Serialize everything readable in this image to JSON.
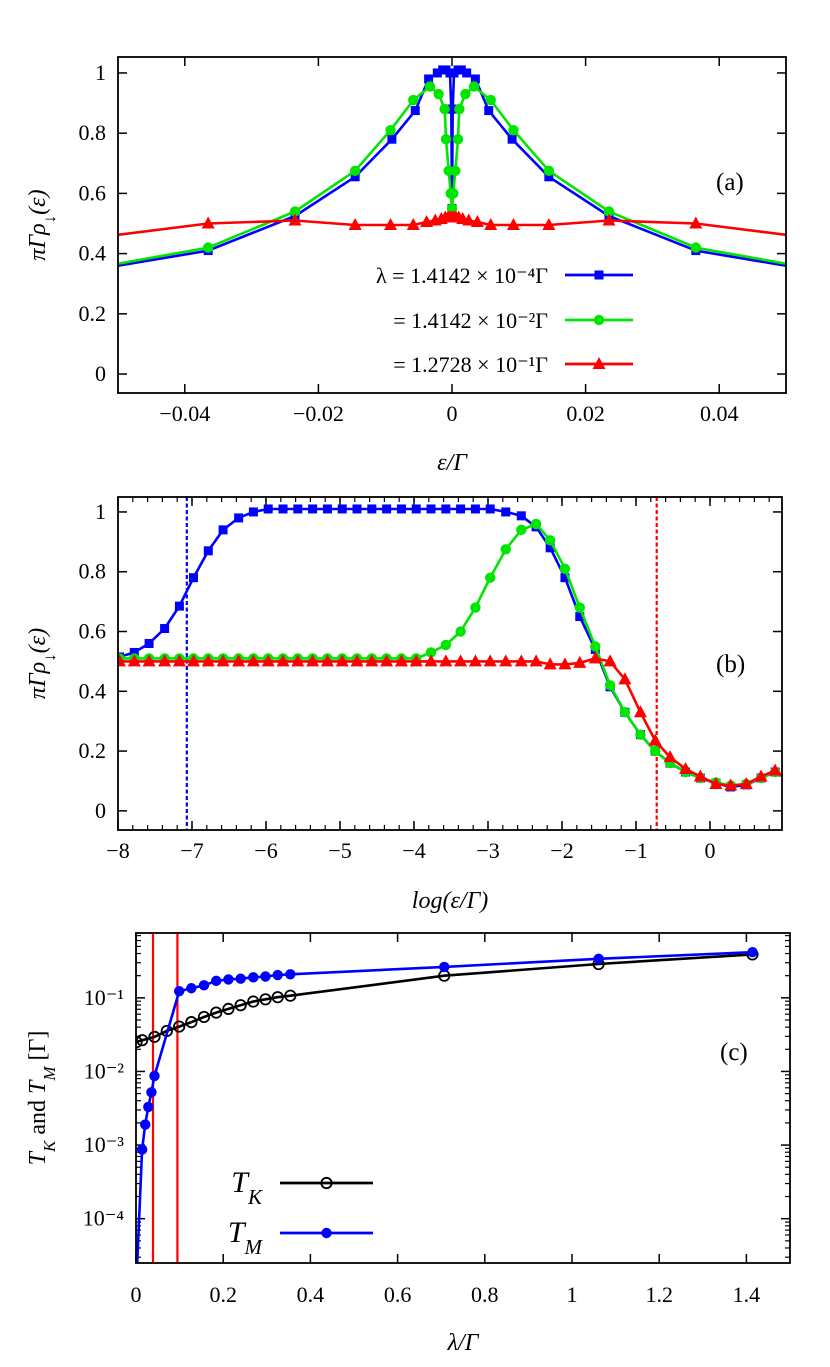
{
  "chart_data": [
    {
      "type": "line",
      "panel_label": "(a)",
      "xlabel": "ε/Γ",
      "ylabel_parts": [
        "πΓρ",
        "↓",
        "(ε)"
      ],
      "xlim": [
        -0.05,
        0.05
      ],
      "ylim": [
        -0.063,
        1.053
      ],
      "grid": false,
      "legend_position": "center-bottom",
      "xticks": [
        {
          "value": -0.04,
          "label": "−0.04"
        },
        {
          "value": -0.02,
          "label": "−0.02"
        },
        {
          "value": 0,
          "label": "0"
        },
        {
          "value": 0.02,
          "label": "0.02"
        },
        {
          "value": 0.04,
          "label": "0.04"
        }
      ],
      "yticks": [
        {
          "value": 0,
          "label": "0"
        },
        {
          "value": 0.2,
          "label": "0.2"
        },
        {
          "value": 0.4,
          "label": "0.4"
        },
        {
          "value": 0.6,
          "label": "0.6"
        },
        {
          "value": 0.8,
          "label": "0.8"
        },
        {
          "value": 1,
          "label": "1"
        }
      ],
      "series": [
        {
          "name": "λ = 1.4142 × 10⁻⁴Γ",
          "color": "#0000ff",
          "marker": "square",
          "x": [
            -0.058,
            -0.0365,
            -0.0235,
            -0.0145,
            -0.009,
            -0.0055,
            -0.0035,
            -0.0022,
            -0.0014,
            -0.0009,
            -0.0003,
            -0.0001,
            0,
            0.0001,
            0.0003,
            0.0009,
            0.0014,
            0.0022,
            0.0035,
            0.0055,
            0.009,
            0.0145,
            0.0235,
            0.0365,
            0.058
          ],
          "y": [
            0.33,
            0.41,
            0.525,
            0.655,
            0.78,
            0.875,
            0.98,
            1.0,
            1.01,
            1.01,
            1.0,
            0.88,
            0.55,
            0.88,
            1.0,
            1.01,
            1.01,
            1.0,
            0.98,
            0.875,
            0.78,
            0.655,
            0.525,
            0.41,
            0.33
          ]
        },
        {
          "name": "= 1.4142 × 10⁻²Γ",
          "color": "#00e600",
          "marker": "circle",
          "x": [
            -0.058,
            -0.0365,
            -0.0235,
            -0.0145,
            -0.0092,
            -0.0058,
            -0.0033,
            -0.002,
            -0.0011,
            -0.0009,
            -0.0005,
            -0.0002,
            0,
            0.0002,
            0.0005,
            0.0009,
            0.0011,
            0.002,
            0.0033,
            0.0058,
            0.0092,
            0.0145,
            0.0235,
            0.0365,
            0.058
          ],
          "y": [
            0.335,
            0.42,
            0.54,
            0.675,
            0.81,
            0.91,
            0.955,
            0.93,
            0.88,
            0.78,
            0.675,
            0.6,
            0.55,
            0.6,
            0.675,
            0.78,
            0.88,
            0.93,
            0.955,
            0.91,
            0.81,
            0.675,
            0.54,
            0.42,
            0.335
          ]
        },
        {
          "name": "= 1.2728 × 10⁻¹Γ",
          "color": "#ff0000",
          "marker": "triangle",
          "x": [
            -0.058,
            -0.0365,
            -0.0235,
            -0.0145,
            -0.0092,
            -0.0058,
            -0.0038,
            -0.0025,
            -0.0016,
            -0.001,
            -0.0006,
            -0.0003,
            0,
            0.0003,
            0.0006,
            0.001,
            0.0016,
            0.0025,
            0.0038,
            0.0058,
            0.0092,
            0.0145,
            0.0235,
            0.0365,
            0.058
          ],
          "y": [
            0.44,
            0.5,
            0.51,
            0.495,
            0.495,
            0.495,
            0.505,
            0.51,
            0.515,
            0.52,
            0.52,
            0.52,
            0.52,
            0.52,
            0.52,
            0.52,
            0.515,
            0.51,
            0.505,
            0.495,
            0.495,
            0.495,
            0.51,
            0.5,
            0.44
          ]
        }
      ]
    },
    {
      "type": "line",
      "panel_label": "(b)",
      "xlabel": "log(ε/Γ)",
      "ylabel_parts": [
        "πΓρ",
        "↓",
        "(ε)"
      ],
      "xlim": [
        -8,
        0.973
      ],
      "ylim": [
        -0.064,
        1.05
      ],
      "grid": false,
      "xticks": [
        {
          "value": -8,
          "label": "−8"
        },
        {
          "value": -7,
          "label": "−7"
        },
        {
          "value": -6,
          "label": "−6"
        },
        {
          "value": -5,
          "label": "−5"
        },
        {
          "value": -4,
          "label": "−4"
        },
        {
          "value": -3,
          "label": "−3"
        },
        {
          "value": -2,
          "label": "−2"
        },
        {
          "value": -1,
          "label": "−1"
        },
        {
          "value": 0,
          "label": "0"
        }
      ],
      "yticks": [
        {
          "value": 0,
          "label": "0"
        },
        {
          "value": 0.2,
          "label": "0.2"
        },
        {
          "value": 0.4,
          "label": "0.4"
        },
        {
          "value": 0.6,
          "label": "0.6"
        },
        {
          "value": 0.8,
          "label": "0.8"
        },
        {
          "value": 1,
          "label": "1"
        }
      ],
      "vlines": [
        {
          "x": -7.07,
          "color": "#0000ff",
          "style": "dashed"
        },
        {
          "x": -0.72,
          "color": "#ff0000",
          "style": "dashed"
        }
      ],
      "series": [
        {
          "color": "#0000ff",
          "marker": "square",
          "x": [
            -7.98,
            -7.78,
            -7.58,
            -7.37,
            -7.17,
            -6.98,
            -6.78,
            -6.58,
            -6.37,
            -6.17,
            -5.97,
            -5.77,
            -5.57,
            -5.37,
            -5.17,
            -4.97,
            -4.77,
            -4.57,
            -4.37,
            -4.17,
            -3.97,
            -3.77,
            -3.57,
            -3.37,
            -3.17,
            -2.97,
            -2.76,
            -2.55,
            -2.35,
            -2.16,
            -1.96,
            -1.76,
            -1.55,
            -1.35,
            -1.15,
            -0.94,
            -0.74,
            -0.54,
            -0.33,
            -0.13,
            0.08,
            0.28,
            0.49,
            0.69,
            0.88,
            1.08
          ],
          "y": [
            0.515,
            0.53,
            0.56,
            0.61,
            0.685,
            0.78,
            0.87,
            0.94,
            0.98,
            1.0,
            1.01,
            1.01,
            1.01,
            1.01,
            1.01,
            1.01,
            1.01,
            1.01,
            1.01,
            1.01,
            1.01,
            1.01,
            1.01,
            1.01,
            1.01,
            1.01,
            1.0,
            0.987,
            0.95,
            0.88,
            0.78,
            0.65,
            0.54,
            0.415,
            0.33,
            0.255,
            0.2,
            0.16,
            0.13,
            0.11,
            0.093,
            0.08,
            0.087,
            0.11,
            0.13,
            0.1
          ]
        },
        {
          "color": "#00e600",
          "marker": "circle",
          "x": [
            -7.98,
            -7.78,
            -7.58,
            -7.37,
            -7.17,
            -6.98,
            -6.78,
            -6.58,
            -6.37,
            -6.17,
            -5.97,
            -5.77,
            -5.57,
            -5.37,
            -5.17,
            -4.97,
            -4.77,
            -4.57,
            -4.37,
            -4.17,
            -3.97,
            -3.77,
            -3.57,
            -3.37,
            -3.17,
            -2.97,
            -2.76,
            -2.55,
            -2.35,
            -2.16,
            -1.96,
            -1.76,
            -1.55,
            -1.35,
            -1.15,
            -0.94,
            -0.74,
            -0.54,
            -0.33,
            -0.13,
            0.08,
            0.28,
            0.49,
            0.69,
            0.88,
            1.08
          ],
          "y": [
            0.51,
            0.51,
            0.51,
            0.51,
            0.51,
            0.51,
            0.51,
            0.51,
            0.51,
            0.51,
            0.51,
            0.51,
            0.51,
            0.51,
            0.51,
            0.51,
            0.51,
            0.51,
            0.51,
            0.51,
            0.51,
            0.53,
            0.555,
            0.6,
            0.68,
            0.78,
            0.875,
            0.94,
            0.96,
            0.905,
            0.81,
            0.68,
            0.55,
            0.42,
            0.33,
            0.255,
            0.2,
            0.16,
            0.13,
            0.11,
            0.095,
            0.085,
            0.09,
            0.11,
            0.13,
            0.1
          ]
        },
        {
          "color": "#ff0000",
          "marker": "triangle",
          "x": [
            -7.98,
            -7.78,
            -7.58,
            -7.37,
            -7.17,
            -6.98,
            -6.78,
            -6.58,
            -6.37,
            -6.17,
            -5.97,
            -5.77,
            -5.57,
            -5.37,
            -5.17,
            -4.97,
            -4.77,
            -4.57,
            -4.37,
            -4.17,
            -3.97,
            -3.77,
            -3.57,
            -3.37,
            -3.17,
            -2.97,
            -2.76,
            -2.55,
            -2.35,
            -2.16,
            -1.96,
            -1.76,
            -1.55,
            -1.35,
            -1.15,
            -0.94,
            -0.74,
            -0.54,
            -0.33,
            -0.13,
            0.08,
            0.28,
            0.49,
            0.69,
            0.88,
            1.08
          ],
          "y": [
            0.5,
            0.5,
            0.5,
            0.5,
            0.5,
            0.5,
            0.5,
            0.5,
            0.5,
            0.5,
            0.5,
            0.5,
            0.5,
            0.5,
            0.5,
            0.5,
            0.5,
            0.5,
            0.5,
            0.5,
            0.5,
            0.5,
            0.5,
            0.5,
            0.5,
            0.5,
            0.5,
            0.5,
            0.5,
            0.49,
            0.49,
            0.495,
            0.51,
            0.5,
            0.44,
            0.33,
            0.235,
            0.18,
            0.14,
            0.115,
            0.09,
            0.085,
            0.09,
            0.115,
            0.135,
            0.1
          ]
        }
      ]
    },
    {
      "type": "line",
      "panel_label": "(c)",
      "xlabel": "λ/Γ",
      "ylabel_parts": [
        "T",
        "K",
        " and ",
        "T",
        "M",
        " [Γ]"
      ],
      "xlim": [
        0,
        1.5
      ],
      "ylim": [
        2.5e-05,
        0.76
      ],
      "yscale": "log",
      "grid": false,
      "legend_position": "bottom-left",
      "xticks": [
        {
          "value": 0,
          "label": "0"
        },
        {
          "value": 0.2,
          "label": "0.2"
        },
        {
          "value": 0.4,
          "label": "0.4"
        },
        {
          "value": 0.6,
          "label": "0.6"
        },
        {
          "value": 0.8,
          "label": "0.8"
        },
        {
          "value": 1,
          "label": "1"
        },
        {
          "value": 1.2,
          "label": "1.2"
        },
        {
          "value": 1.4,
          "label": "1.4"
        }
      ],
      "yticks": [
        {
          "value": 0.0001,
          "label": "10⁻⁴"
        },
        {
          "value": 0.001,
          "label": "10⁻³"
        },
        {
          "value": 0.01,
          "label": "10⁻²"
        },
        {
          "value": 0.1,
          "label": "10⁻¹"
        }
      ],
      "vlines": [
        {
          "x": 0.039,
          "color": "#ff0000",
          "style": "solid"
        },
        {
          "x": 0.095,
          "color": "#ff0000",
          "style": "solid"
        }
      ],
      "series": [
        {
          "name": "T_K",
          "legend_label": {
            "main": "T",
            "sub": "K"
          },
          "color": "#000000",
          "marker": "open-circle",
          "x": [
            0.0014,
            0.0141,
            0.0424,
            0.0707,
            0.099,
            0.127,
            0.156,
            0.184,
            0.212,
            0.24,
            0.269,
            0.297,
            0.325,
            0.354,
            0.707,
            1.061,
            1.414
          ],
          "y": [
            0.0251,
            0.0266,
            0.0295,
            0.0355,
            0.0407,
            0.0468,
            0.055,
            0.063,
            0.0708,
            0.0794,
            0.0891,
            0.0955,
            0.102,
            0.107,
            0.2,
            0.288,
            0.389
          ]
        },
        {
          "name": "T_M",
          "legend_label": {
            "main": "T",
            "sub": "M"
          },
          "color": "#0000ff",
          "marker": "circle",
          "x": [
            0.0014,
            0.0141,
            0.0212,
            0.0283,
            0.0354,
            0.0424,
            0.099,
            0.127,
            0.156,
            0.184,
            0.212,
            0.24,
            0.269,
            0.297,
            0.325,
            0.354,
            0.707,
            1.061,
            1.414
          ],
          "y": [
            1.6e-05,
            0.00087,
            0.0019,
            0.0033,
            0.0052,
            0.0087,
            0.123,
            0.135,
            0.148,
            0.17,
            0.178,
            0.182,
            0.19,
            0.195,
            0.204,
            0.209,
            0.263,
            0.339,
            0.417
          ]
        }
      ]
    }
  ]
}
